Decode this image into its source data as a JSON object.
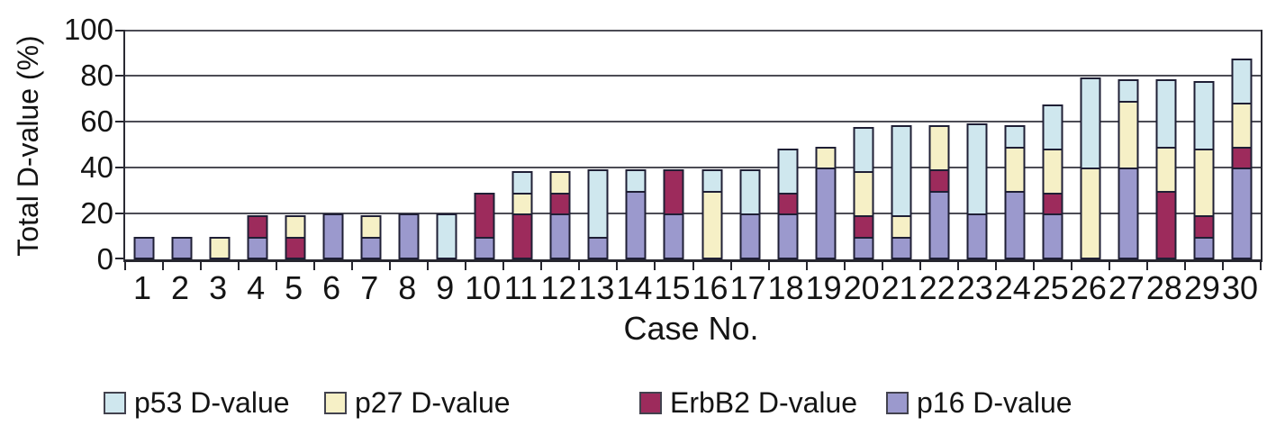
{
  "chart_data": {
    "type": "bar",
    "stacked": true,
    "title": "",
    "xlabel": "Case No.",
    "ylabel": "Total D-value (%)",
    "ylim": [
      0,
      100
    ],
    "yticks": [
      0,
      20,
      40,
      60,
      80,
      100
    ],
    "grid": "horizontal",
    "legend_position": "bottom",
    "categories": [
      1,
      2,
      3,
      4,
      5,
      6,
      7,
      8,
      9,
      10,
      11,
      12,
      13,
      14,
      15,
      16,
      17,
      18,
      19,
      20,
      21,
      22,
      23,
      24,
      25,
      26,
      27,
      28,
      29,
      30
    ],
    "stack_order_bottom_to_top": [
      "p16 D-value",
      "ErbB2 D-value",
      "p27 D-value",
      "p53 D-value"
    ],
    "series": [
      {
        "name": "p16 D-value",
        "color": "#9b99cd",
        "values": [
          10,
          10,
          0,
          10,
          0,
          20,
          10,
          20,
          0,
          10,
          0,
          20,
          10,
          30,
          20,
          0,
          20,
          20,
          40,
          10,
          10,
          30,
          20,
          30,
          20,
          0,
          40,
          0,
          10,
          40
        ]
      },
      {
        "name": "ErbB2 D-value",
        "color": "#9d2b5c",
        "values": [
          0,
          0,
          0,
          10,
          10,
          0,
          0,
          0,
          0,
          20,
          20,
          10,
          0,
          0,
          20,
          0,
          0,
          10,
          0,
          10,
          0,
          10,
          0,
          0,
          10,
          0,
          0,
          30,
          10,
          10
        ]
      },
      {
        "name": "p27 D-value",
        "color": "#f6f0c6",
        "values": [
          0,
          0,
          10,
          0,
          10,
          0,
          10,
          0,
          0,
          0,
          10,
          10,
          0,
          0,
          0,
          30,
          0,
          0,
          10,
          20,
          10,
          20,
          0,
          20,
          20,
          40,
          30,
          20,
          30,
          20
        ]
      },
      {
        "name": "p53 D-value",
        "color": "#cfe7ee",
        "values": [
          0,
          0,
          0,
          0,
          0,
          0,
          0,
          0,
          20,
          0,
          10,
          0,
          30,
          10,
          0,
          10,
          20,
          20,
          0,
          20,
          40,
          0,
          40,
          10,
          20,
          40,
          10,
          30,
          30,
          20
        ]
      }
    ],
    "legend_order": [
      "p53 D-value",
      "p27 D-value",
      "ErbB2 D-value",
      "p16 D-value"
    ],
    "totals": [
      10,
      10,
      10,
      20,
      20,
      20,
      20,
      20,
      20,
      30,
      40,
      40,
      40,
      40,
      40,
      40,
      40,
      50,
      50,
      60,
      60,
      60,
      60,
      60,
      70,
      80,
      80,
      80,
      80,
      90
    ]
  }
}
